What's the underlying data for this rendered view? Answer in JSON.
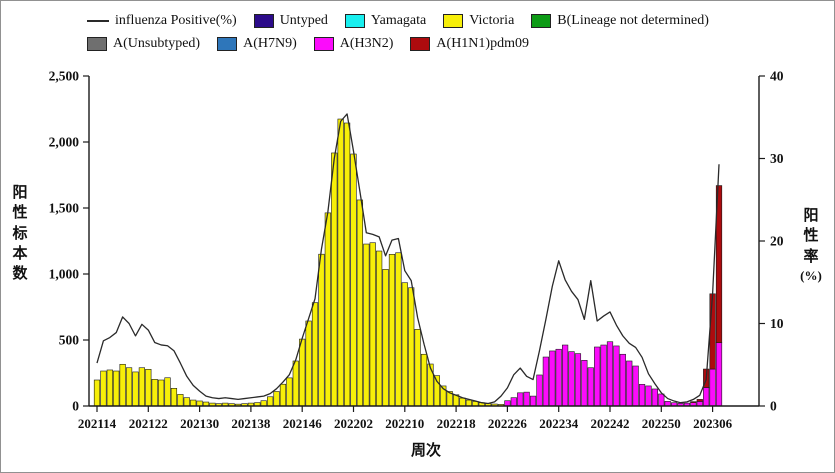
{
  "legend": {
    "rows": [
      [
        {
          "label": "influenza Positive(%)",
          "swatch": "line",
          "color": "#2a2a2a"
        },
        {
          "label": "Untyped",
          "swatch": "box",
          "color": "#2c0b8a"
        },
        {
          "label": "Yamagata",
          "swatch": "box",
          "color": "#19efef"
        },
        {
          "label": "Victoria",
          "swatch": "box",
          "color": "#f7ef09"
        },
        {
          "label": "B(Lineage not determined)",
          "swatch": "box",
          "color": "#0d9b16"
        }
      ],
      [
        {
          "label": "A(Unsubtyped)",
          "swatch": "box",
          "color": "#6f6f6f"
        },
        {
          "label": "A(H7N9)",
          "swatch": "box",
          "color": "#2e76ba"
        },
        {
          "label": "A(H3N2)",
          "swatch": "box",
          "color": "#fb0cfb"
        },
        {
          "label": "A(H1N1)pdm09",
          "swatch": "box",
          "color": "#ad0b0e"
        }
      ]
    ]
  },
  "chart_data": {
    "type": "bar",
    "subtype": "stacked weekly bars with positive-rate line overlay",
    "title": "",
    "xlabel": "周次",
    "ylabel_left": "阳性标本数",
    "ylabel_right": "阳性率(%)",
    "ylim_left": [
      0,
      2500
    ],
    "ylim_right": [
      0,
      40
    ],
    "y_ticks_left": {
      "values": [
        0,
        500,
        1000,
        1500,
        2000,
        2500
      ],
      "labels": [
        "0",
        "500",
        "1,000",
        "1,500",
        "2,000",
        "2,500"
      ]
    },
    "y_ticks_right": {
      "values": [
        0,
        10,
        20,
        30,
        40
      ],
      "labels": [
        "0",
        "10",
        "20",
        "30",
        "40"
      ]
    },
    "x_first_week": "202114",
    "x_last_week": "202307",
    "x_weeks_count": 98,
    "x_tick_labels": [
      "202114",
      "202122",
      "202130",
      "202138",
      "202146",
      "202202",
      "202210",
      "202218",
      "202226",
      "202234",
      "202242",
      "202250",
      "202306"
    ],
    "x_tick_week_indices": [
      0,
      8,
      16,
      24,
      32,
      40,
      48,
      56,
      64,
      72,
      80,
      88,
      96
    ],
    "zero_series": [
      "Untyped",
      "Yamagata",
      "B(Lineage not determined)",
      "A(Unsubtyped)",
      "A(H7N9)"
    ],
    "bar_series": [
      {
        "name": "Victoria",
        "color": "#f7ef09",
        "values": [
          197,
          265,
          273,
          265,
          316,
          290,
          258,
          290,
          278,
          202,
          197,
          214,
          134,
          88,
          63,
          45,
          38,
          30,
          22,
          18,
          22,
          18,
          14,
          18,
          22,
          26,
          40,
          70,
          110,
          165,
          213,
          341,
          507,
          644,
          783,
          1150,
          1463,
          1917,
          2174,
          2144,
          1909,
          1561,
          1227,
          1237,
          1174,
          1035,
          1149,
          1161,
          934,
          896,
          581,
          392,
          318,
          230,
          152,
          110,
          85,
          60,
          45,
          35,
          25,
          20,
          15,
          12,
          0,
          0,
          0,
          0,
          0,
          0,
          0,
          0,
          0,
          0,
          0,
          0,
          0,
          0,
          0,
          0,
          0,
          0,
          0,
          0,
          0,
          0,
          0,
          0,
          0,
          0,
          0,
          0,
          0,
          0,
          0,
          0,
          0,
          0
        ]
      },
      {
        "name": "A(H3N2)",
        "color": "#fb0cfb",
        "values": [
          0,
          0,
          0,
          0,
          0,
          0,
          0,
          0,
          0,
          0,
          0,
          0,
          0,
          0,
          0,
          0,
          0,
          0,
          0,
          0,
          0,
          0,
          0,
          0,
          0,
          0,
          0,
          0,
          0,
          0,
          0,
          0,
          0,
          0,
          0,
          0,
          0,
          0,
          0,
          0,
          0,
          0,
          0,
          0,
          0,
          0,
          0,
          0,
          0,
          0,
          0,
          0,
          0,
          0,
          0,
          0,
          0,
          0,
          0,
          0,
          0,
          0,
          0,
          0,
          40,
          63,
          100,
          105,
          75,
          235,
          371,
          417,
          430,
          462,
          412,
          397,
          346,
          290,
          447,
          462,
          487,
          455,
          392,
          341,
          303,
          164,
          152,
          129,
          91,
          35,
          25,
          20,
          22,
          25,
          35,
          140,
          280,
          480
        ]
      },
      {
        "name": "A(H1N1)pdm09",
        "color": "#ad0b0e",
        "values": [
          0,
          0,
          0,
          0,
          0,
          0,
          0,
          0,
          0,
          0,
          0,
          0,
          0,
          0,
          0,
          0,
          0,
          0,
          0,
          0,
          0,
          0,
          0,
          0,
          0,
          0,
          0,
          0,
          0,
          0,
          0,
          0,
          0,
          0,
          0,
          0,
          0,
          0,
          0,
          0,
          0,
          0,
          0,
          0,
          0,
          0,
          0,
          0,
          0,
          0,
          0,
          0,
          0,
          0,
          0,
          0,
          0,
          0,
          0,
          0,
          0,
          0,
          0,
          0,
          0,
          0,
          0,
          0,
          0,
          0,
          0,
          0,
          0,
          0,
          0,
          0,
          0,
          0,
          0,
          0,
          0,
          0,
          0,
          0,
          0,
          0,
          0,
          0,
          0,
          0,
          0,
          0,
          0,
          8,
          15,
          140,
          570,
          1190
        ]
      }
    ],
    "line_series": {
      "name": "influenza Positive(%)",
      "color": "#2a2a2a",
      "axis": "right",
      "values": [
        5.2,
        7.9,
        8.3,
        8.9,
        10.8,
        10.0,
        8.5,
        9.9,
        9.2,
        7.7,
        7.4,
        7.3,
        6.7,
        5.2,
        3.6,
        2.5,
        1.8,
        1.2,
        1.0,
        0.9,
        1.0,
        0.9,
        0.8,
        0.9,
        1.0,
        1.1,
        1.2,
        1.5,
        2.1,
        2.9,
        3.8,
        5.6,
        8.2,
        10.6,
        13.0,
        19.0,
        23.5,
        30.0,
        34.5,
        35.4,
        30.9,
        26.0,
        21.0,
        20.8,
        20.5,
        18.2,
        20.1,
        20.3,
        16.4,
        15.2,
        10.7,
        7.5,
        4.6,
        3.0,
        2.1,
        1.6,
        1.3,
        1.0,
        0.8,
        0.6,
        0.4,
        0.3,
        0.5,
        1.2,
        2.2,
        3.8,
        4.6,
        3.6,
        3.2,
        6.7,
        10.5,
        14.5,
        17.6,
        15.3,
        13.9,
        12.9,
        10.5,
        15.2,
        10.3,
        10.9,
        11.4,
        9.8,
        8.5,
        7.6,
        7.1,
        5.9,
        3.9,
        2.7,
        1.6,
        0.9,
        0.6,
        0.4,
        0.5,
        0.8,
        1.3,
        3.2,
        13.6,
        29.3
      ]
    },
    "legend_position": "top",
    "grid": false
  }
}
